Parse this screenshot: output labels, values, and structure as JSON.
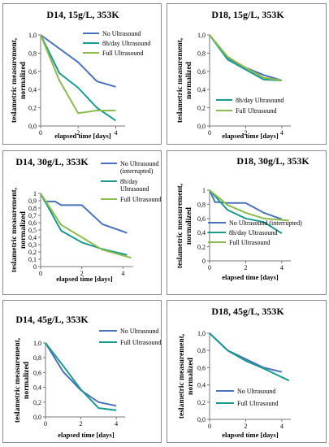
{
  "chart_data": [
    {
      "type": "line",
      "title": "D14, 15g/L, 353K",
      "xlabel": "elapsed time [days]",
      "ylabel": "teslametric measurement, normalized",
      "xticks": [
        0,
        2,
        4
      ],
      "yticks": [
        "0,0",
        "0,2",
        "0,4",
        "0,6",
        "0,8",
        "1,0"
      ],
      "xlim": [
        0,
        4.5
      ],
      "ylim": [
        0,
        1
      ],
      "legend_position": "top-right",
      "series": [
        {
          "name": "No Ultrasound",
          "color": "#4a72b8",
          "x": [
            0,
            2,
            3,
            4
          ],
          "y": [
            1.0,
            0.7,
            0.49,
            0.43
          ]
        },
        {
          "name": "8h/day Ultrasound",
          "color": "#1a9a8e",
          "x": [
            0,
            1,
            2,
            3,
            4
          ],
          "y": [
            1.0,
            0.58,
            0.42,
            0.2,
            0.06
          ]
        },
        {
          "name": "Full Ultrasound",
          "color": "#8dbb4e",
          "x": [
            0,
            1,
            2,
            3,
            4
          ],
          "y": [
            1.0,
            0.5,
            0.14,
            0.17,
            0.17
          ]
        }
      ]
    },
    {
      "type": "line",
      "title": "D18, 15g/L, 353K",
      "xlabel": "elapsed time [days]",
      "ylabel": "teslametric measurement, normalized",
      "xticks": [
        0,
        2,
        4
      ],
      "yticks": [
        "0,0",
        "0,2",
        "0,4",
        "0,6",
        "0,8",
        "1,0"
      ],
      "xlim": [
        0,
        4.5
      ],
      "ylim": [
        0,
        1
      ],
      "legend_position": "bottom-right",
      "series": [
        {
          "name": "",
          "color": "#4a72b8",
          "x": [
            0,
            1,
            2,
            3,
            4
          ],
          "y": [
            1.0,
            0.75,
            0.64,
            0.56,
            0.5
          ]
        },
        {
          "name": "8h/day Ultrasound",
          "color": "#1a9a8e",
          "x": [
            0,
            1,
            2,
            3,
            4
          ],
          "y": [
            1.0,
            0.73,
            0.62,
            0.51,
            0.5
          ]
        },
        {
          "name": "Full Ultrasound",
          "color": "#8dbb4e",
          "x": [
            0,
            1,
            2,
            3,
            4
          ],
          "y": [
            1.0,
            0.76,
            0.64,
            0.53,
            0.5
          ]
        }
      ]
    },
    {
      "type": "line",
      "title": "D14, 30g/L, 353K",
      "xlabel": "elapsed time [days]",
      "ylabel": "teslametric measurement, normalized",
      "xticks": [
        0,
        2,
        4
      ],
      "yticks": [
        "0",
        "0,1",
        "0,2",
        "0,3",
        "0,4",
        "0,5",
        "0,6",
        "0,7",
        "0,8",
        "0,9",
        "1"
      ],
      "xlim": [
        0,
        4.5
      ],
      "ylim": [
        0,
        1
      ],
      "legend_position": "top-right",
      "series": [
        {
          "name": "No Ultrasound (interrupted)",
          "color": "#4a72b8",
          "x": [
            0,
            0.2,
            0.7,
            1,
            2,
            3,
            4.2
          ],
          "y": [
            1.0,
            0.89,
            0.89,
            0.84,
            0.84,
            0.58,
            0.46
          ]
        },
        {
          "name": "8h/day Ultrasound",
          "color": "#1a9a8e",
          "x": [
            0,
            1,
            2,
            3,
            4.2
          ],
          "y": [
            1.0,
            0.49,
            0.33,
            0.24,
            0.16
          ]
        },
        {
          "name": "Full Ultrasound",
          "color": "#8dbb4e",
          "x": [
            0,
            1,
            2,
            3,
            4.4
          ],
          "y": [
            1.0,
            0.57,
            0.4,
            0.23,
            0.12
          ]
        }
      ]
    },
    {
      "type": "line",
      "title": "D18, 30g/L, 353K",
      "xlabel": "elapsed time [days]",
      "ylabel": "teslametric measurement, normalized",
      "xticks": [
        0,
        2,
        4
      ],
      "yticks": [
        "0",
        "0,2",
        "0,4",
        "0,6",
        "0,8",
        "1"
      ],
      "xlim": [
        0,
        4.5
      ],
      "ylim": [
        0,
        1
      ],
      "legend_position": "bottom-right",
      "series": [
        {
          "name": "No Ultrasound (interrupted)",
          "color": "#4a72b8",
          "x": [
            0,
            0.3,
            0.5,
            1,
            2,
            3,
            4
          ],
          "y": [
            1.0,
            0.83,
            0.83,
            0.82,
            0.82,
            0.68,
            0.59
          ]
        },
        {
          "name": "8h/day Ultrasound",
          "color": "#1a9a8e",
          "x": [
            0,
            1,
            2,
            3,
            4
          ],
          "y": [
            1.0,
            0.72,
            0.6,
            0.55,
            0.39
          ]
        },
        {
          "name": "Full Ultrasound",
          "color": "#8dbb4e",
          "x": [
            0,
            1,
            2,
            3,
            4.4
          ],
          "y": [
            1.0,
            0.79,
            0.68,
            0.6,
            0.57
          ]
        }
      ]
    },
    {
      "type": "line",
      "title": "D14, 45g/L, 353K",
      "xlabel": "elapsed time [days]",
      "ylabel": "teslametric measurement, normalized",
      "xticks": [
        0,
        2,
        4
      ],
      "yticks": [
        "0,0",
        "0,2",
        "0,4",
        "0,6",
        "0,8",
        "1,0"
      ],
      "xlim": [
        0,
        4.5
      ],
      "ylim": [
        0,
        1
      ],
      "legend_position": "top-right",
      "series": [
        {
          "name": "No Ultrasound",
          "color": "#4a72b8",
          "x": [
            0,
            1,
            2,
            3,
            4
          ],
          "y": [
            1.0,
            0.61,
            0.36,
            0.2,
            0.15
          ]
        },
        {
          "name": "Full Ultrasound",
          "color": "#1a9a8e",
          "x": [
            0,
            1,
            2,
            3,
            4
          ],
          "y": [
            1.0,
            0.69,
            0.37,
            0.12,
            0.09
          ]
        }
      ]
    },
    {
      "type": "line",
      "title": "D18, 45g/L, 353K",
      "xlabel": "elapsed time [days]",
      "ylabel": "teslametric measurement, normalized",
      "xticks": [
        0,
        2,
        4
      ],
      "yticks": [
        "0,0",
        "0,2",
        "0,4",
        "0,6",
        "0,8",
        "1,0"
      ],
      "xlim": [
        0,
        4.5
      ],
      "ylim": [
        0,
        1
      ],
      "legend_position": "bottom-right",
      "series": [
        {
          "name": "No Ultrasound",
          "color": "#4a72b8",
          "x": [
            0,
            1,
            2,
            3,
            4
          ],
          "y": [
            1.0,
            0.8,
            0.7,
            0.6,
            0.55
          ]
        },
        {
          "name": "Full Ultrasound",
          "color": "#1a9a8e",
          "x": [
            0,
            1,
            2,
            3,
            4.4
          ],
          "y": [
            1.0,
            0.8,
            0.68,
            0.59,
            0.45
          ]
        }
      ]
    }
  ]
}
